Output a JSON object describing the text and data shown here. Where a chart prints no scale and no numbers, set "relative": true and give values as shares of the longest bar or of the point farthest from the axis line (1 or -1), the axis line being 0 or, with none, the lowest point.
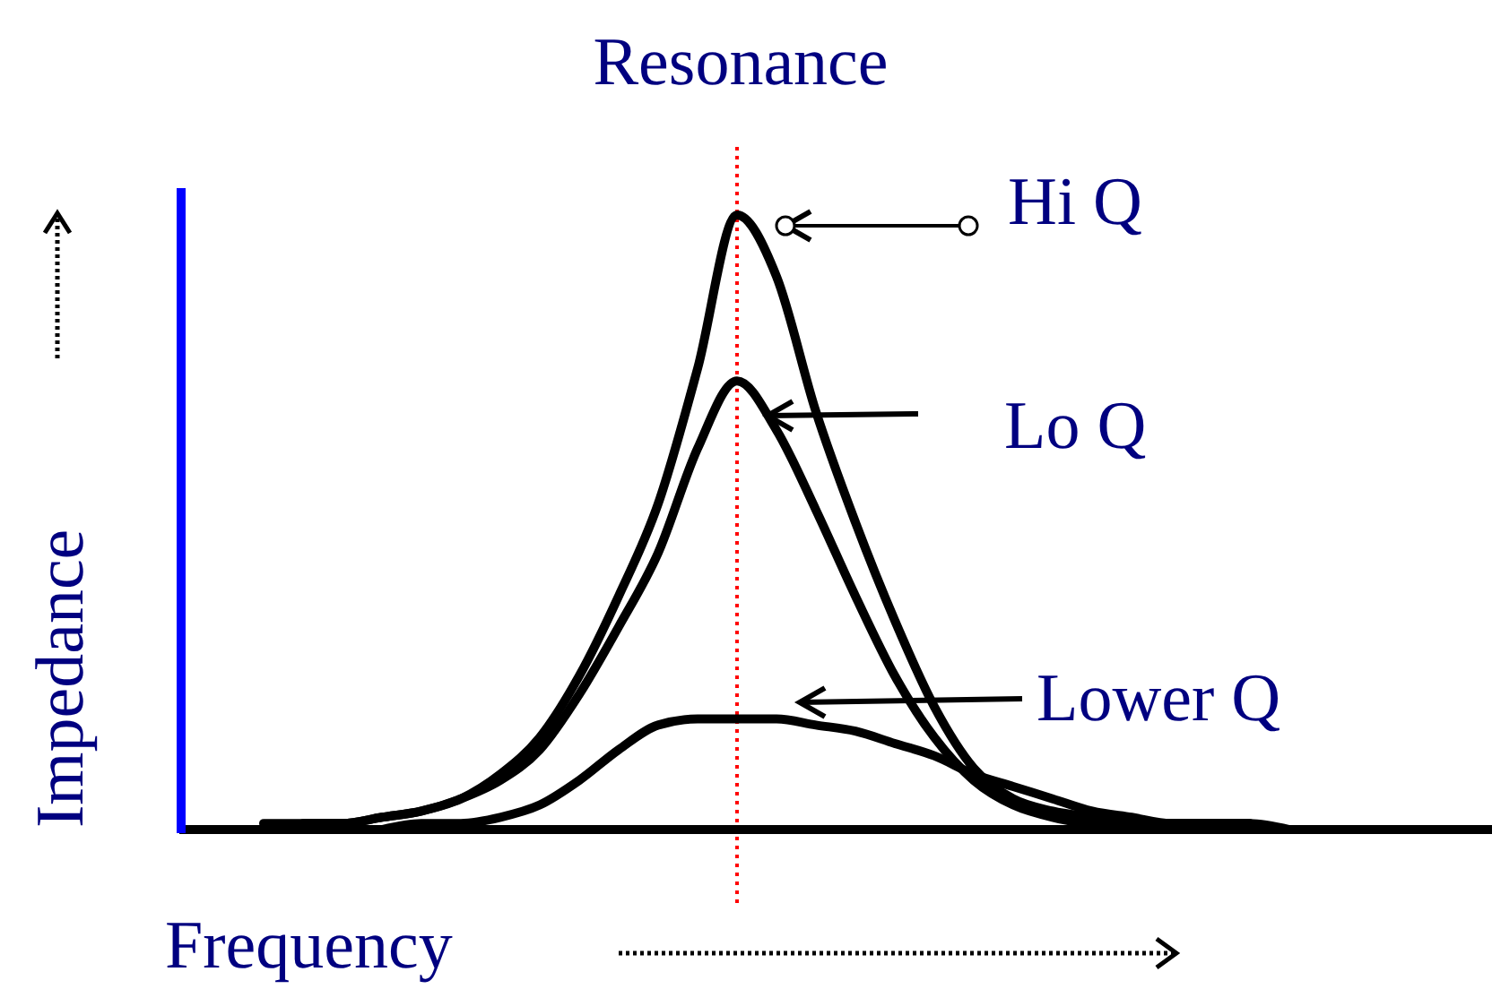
{
  "chart_data": {
    "type": "line",
    "title": "Resonance",
    "relative": true,
    "xlabel": "Frequency",
    "ylabel": "Impedance",
    "marker": "none",
    "line_style": "solid",
    "legend": "right",
    "categories": [
      null,
      null,
      null,
      null,
      null,
      null,
      null,
      null,
      null,
      null,
      null,
      null,
      null,
      null,
      null,
      null,
      null,
      null,
      null,
      null,
      null,
      null,
      null,
      null,
      null,
      null,
      null
    ],
    "series": [
      {
        "name": "Hi Q",
        "color": "#000000",
        "values": [
          0.01,
          0.01,
          0.01,
          0.02,
          0.03,
          0.05,
          0.09,
          0.15,
          0.25,
          0.38,
          0.53,
          0.75,
          1.0,
          0.9,
          0.68,
          0.5,
          0.34,
          0.2,
          0.1,
          0.05,
          0.03,
          0.02,
          0.01,
          0.01,
          0.01,
          0.01,
          null
        ]
      },
      {
        "name": "Lo Q",
        "color": "#000000",
        "values": [
          null,
          0.01,
          0.01,
          0.02,
          0.03,
          0.05,
          0.08,
          0.13,
          0.22,
          0.33,
          0.45,
          0.62,
          0.73,
          0.65,
          0.52,
          0.38,
          0.25,
          0.15,
          0.08,
          0.04,
          0.02,
          0.01,
          0.01,
          null,
          null,
          null,
          null
        ]
      },
      {
        "name": "Lower Q",
        "color": "#000000",
        "values": [
          null,
          null,
          null,
          0.0,
          0.01,
          0.01,
          0.02,
          0.04,
          0.08,
          0.13,
          0.17,
          0.18,
          0.18,
          0.18,
          0.17,
          0.16,
          0.14,
          0.12,
          0.09,
          0.07,
          0.05,
          0.03,
          0.02,
          0.01,
          0.01,
          0.01,
          0.0
        ]
      }
    ]
  }
}
